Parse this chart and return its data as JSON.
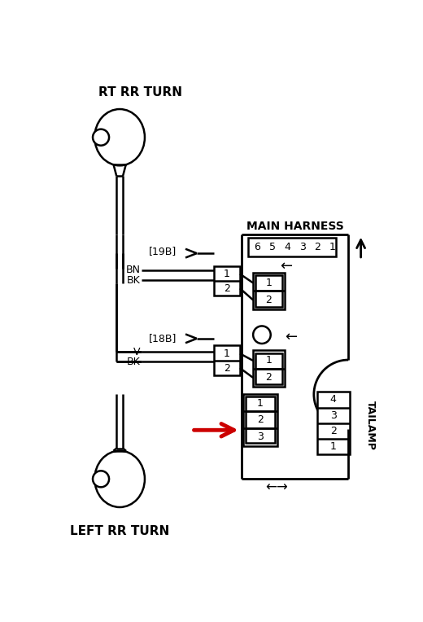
{
  "bg_color": "#ffffff",
  "figsize": [
    5.2,
    7.64
  ],
  "dpi": 100,
  "labels": {
    "rt_rr_turn": "RT RR TURN",
    "left_rr_turn": "LEFT RR TURN",
    "main_harness": "MAIN HARNESS",
    "tailamp": "TAILAMP",
    "19b": "[19B]",
    "18b": "[18B]",
    "bn": "BN",
    "bk": "BK",
    "v": "V"
  },
  "colors": {
    "black": "#000000",
    "red": "#cc0000",
    "white": "#ffffff"
  }
}
